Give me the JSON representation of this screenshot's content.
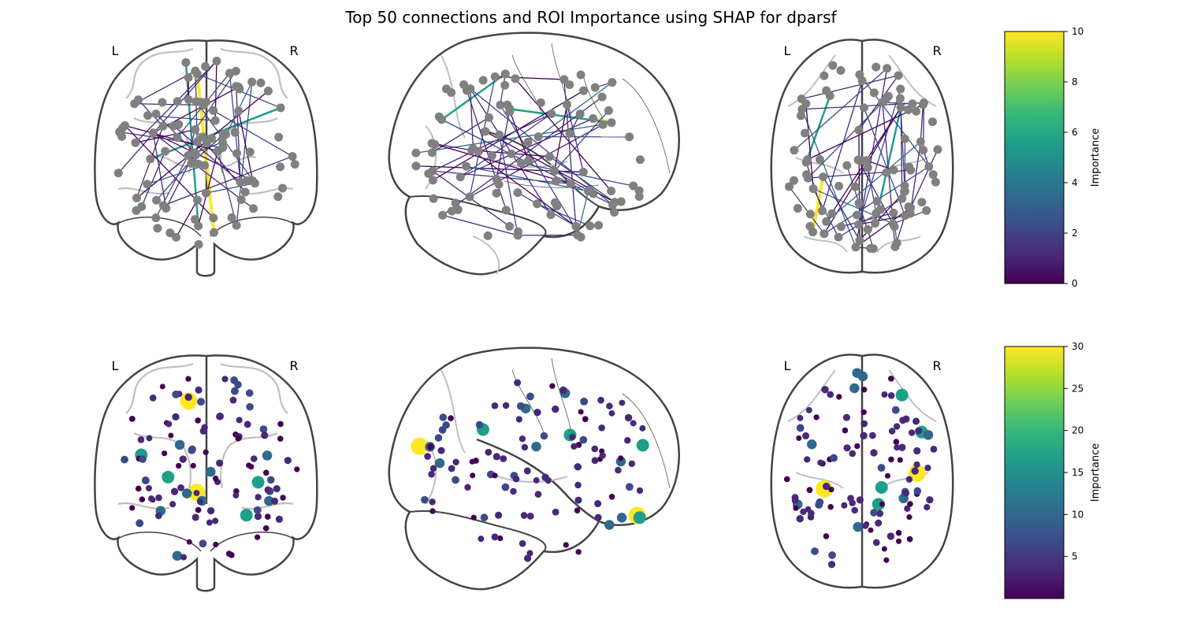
{
  "title": "Top 50 connections and ROI Importance using SHAP for dparsf",
  "view_labels": {
    "left": "L",
    "right": "R"
  },
  "palette": [
    "#440154",
    "#482878",
    "#3e4989",
    "#31688e",
    "#26828e",
    "#1f9e89",
    "#35b779",
    "#6ece58",
    "#b5de2b",
    "#fde725"
  ],
  "node_color": "#808080",
  "chart_data": [
    {
      "type": "other",
      "description_kind": "glass-brain connectome",
      "colorbar": {
        "label": "Importance",
        "ticks": [
          0,
          2,
          4,
          6,
          8,
          10
        ],
        "range": [
          0,
          10
        ]
      },
      "edges_shown": 50,
      "edge_importance_max": 10,
      "edge_importance_second": 6,
      "edge_importance_others_range": [
        0,
        3
      ]
    },
    {
      "type": "other",
      "description_kind": "glass-brain ROI markers",
      "colorbar": {
        "label": "Importance",
        "ticks": [
          5,
          10,
          15,
          20,
          25,
          30
        ],
        "range": [
          0,
          30
        ]
      },
      "top_roi_importance": 30,
      "second_tier_importance": 18,
      "third_tier_importance": 11
    }
  ]
}
